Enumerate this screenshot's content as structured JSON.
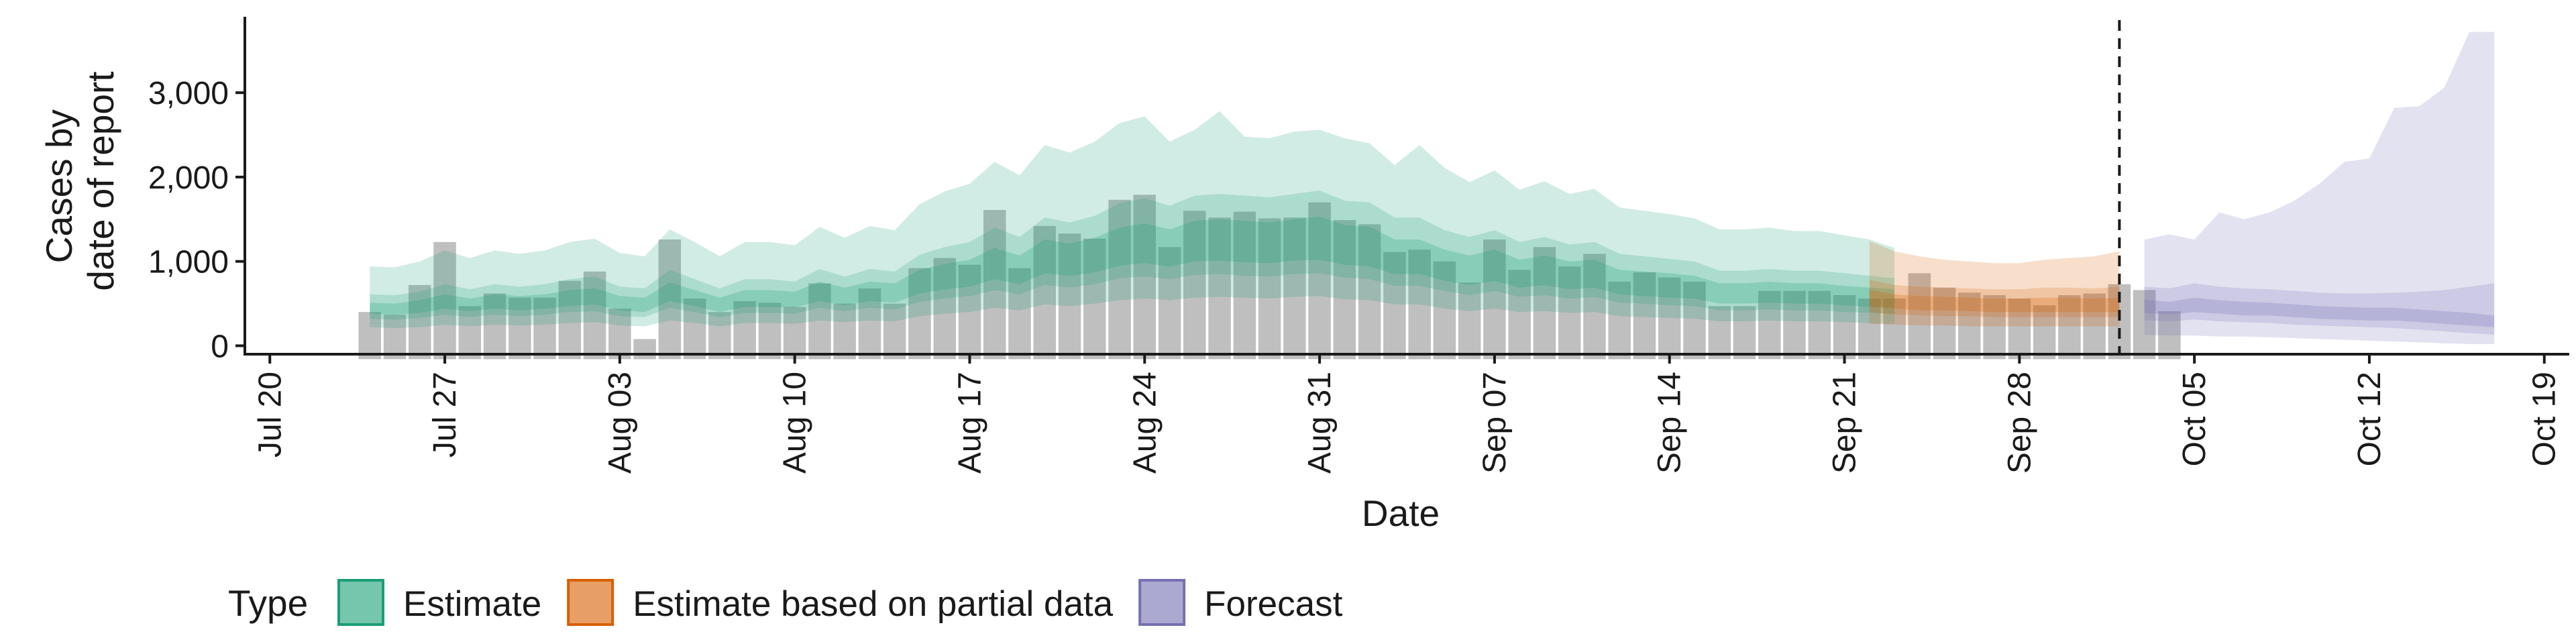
{
  "chart_data": {
    "type": "bar",
    "title": "",
    "xlabel": "Date",
    "ylabel_lines": [
      "Cases by",
      "date of report"
    ],
    "x_start_date": "2020-07-20",
    "xlim": [
      "2020-07-19",
      "2020-10-20"
    ],
    "ylim": [
      -100,
      3900
    ],
    "x_ticks": [
      "Jul 20",
      "Jul 27",
      "Aug 03",
      "Aug 10",
      "Aug 17",
      "Aug 24",
      "Aug 31",
      "Sep 07",
      "Sep 14",
      "Sep 21",
      "Sep 28",
      "Oct 05",
      "Oct 12",
      "Oct 19"
    ],
    "y_ticks": [
      {
        "value": 0,
        "label": "0"
      },
      {
        "value": 1000,
        "label": "1,000"
      },
      {
        "value": 2000,
        "label": "2,000"
      },
      {
        "value": 3000,
        "label": "3,000"
      }
    ],
    "vline_date": "2020-10-02",
    "observed_cases": {
      "start": "2020-07-24",
      "values": [
        400,
        370,
        720,
        1230,
        470,
        620,
        570,
        570,
        770,
        880,
        440,
        80,
        1260,
        560,
        400,
        530,
        510,
        460,
        740,
        500,
        680,
        500,
        920,
        1040,
        960,
        1610,
        920,
        1420,
        1330,
        1270,
        1730,
        1790,
        1170,
        1600,
        1520,
        1590,
        1510,
        1520,
        1700,
        1490,
        1440,
        1110,
        1140,
        1000,
        750,
        1260,
        900,
        1170,
        940,
        1090,
        760,
        870,
        810,
        760,
        470,
        470,
        650,
        650,
        650,
        600,
        560,
        560,
        860,
        690,
        630,
        600,
        560,
        480,
        600,
        620,
        730,
        660,
        410
      ]
    },
    "series": [
      {
        "name": "Estimate",
        "start": "2020-07-24",
        "color": "#1b9e77",
        "median": [
          440,
          430,
          460,
          520,
          480,
          520,
          500,
          520,
          560,
          580,
          500,
          480,
          640,
          560,
          480,
          560,
          560,
          540,
          640,
          580,
          640,
          620,
          760,
          820,
          860,
          980,
          900,
          1060,
          1020,
          1080,
          1180,
          1220,
          1160,
          1240,
          1260,
          1240,
          1220,
          1260,
          1280,
          1200,
          1180,
          1060,
          1060,
          960,
          900,
          960,
          860,
          900,
          840,
          860,
          760,
          740,
          720,
          700,
          620,
          620,
          640,
          620,
          620,
          600,
          580,
          560
        ],
        "inner_lower": [
          380,
          370,
          390,
          440,
          410,
          440,
          420,
          440,
          470,
          490,
          420,
          400,
          530,
          470,
          400,
          460,
          460,
          450,
          530,
          480,
          530,
          510,
          620,
          670,
          700,
          790,
          730,
          860,
          830,
          870,
          950,
          980,
          940,
          1000,
          1010,
          990,
          980,
          1010,
          1020,
          960,
          940,
          850,
          850,
          770,
          720,
          770,
          690,
          720,
          670,
          690,
          610,
          590,
          570,
          560,
          500,
          500,
          510,
          500,
          500,
          480,
          460,
          450
        ],
        "inner_upper": [
          510,
          500,
          540,
          610,
          560,
          610,
          590,
          610,
          660,
          680,
          590,
          570,
          750,
          660,
          570,
          660,
          660,
          640,
          760,
          690,
          760,
          740,
          900,
          970,
          1020,
          1160,
          1070,
          1260,
          1210,
          1280,
          1400,
          1450,
          1380,
          1480,
          1500,
          1480,
          1460,
          1500,
          1530,
          1430,
          1410,
          1260,
          1260,
          1140,
          1070,
          1140,
          1020,
          1070,
          1000,
          1020,
          900,
          880,
          860,
          830,
          740,
          740,
          760,
          740,
          740,
          710,
          690,
          670
        ],
        "mid_lower": [
          320,
          310,
          330,
          370,
          340,
          370,
          350,
          370,
          400,
          410,
          350,
          340,
          450,
          400,
          340,
          390,
          390,
          380,
          450,
          410,
          450,
          430,
          520,
          560,
          590,
          660,
          610,
          720,
          690,
          730,
          800,
          820,
          790,
          840,
          850,
          830,
          820,
          850,
          860,
          810,
          790,
          710,
          710,
          650,
          600,
          650,
          580,
          600,
          560,
          580,
          510,
          500,
          480,
          470,
          420,
          420,
          430,
          420,
          420,
          400,
          390,
          380
        ],
        "mid_upper": [
          610,
          600,
          640,
          730,
          670,
          730,
          700,
          730,
          790,
          820,
          700,
          680,
          900,
          790,
          680,
          790,
          790,
          760,
          910,
          820,
          910,
          880,
          1080,
          1170,
          1230,
          1400,
          1290,
          1520,
          1460,
          1540,
          1690,
          1750,
          1660,
          1780,
          1800,
          1780,
          1760,
          1800,
          1840,
          1720,
          1700,
          1520,
          1520,
          1370,
          1290,
          1370,
          1230,
          1290,
          1200,
          1230,
          1090,
          1060,
          1030,
          1000,
          890,
          890,
          910,
          890,
          890,
          860,
          830,
          800
        ],
        "outer_lower": [
          220,
          210,
          220,
          250,
          230,
          250,
          240,
          250,
          270,
          280,
          240,
          230,
          300,
          270,
          230,
          270,
          270,
          260,
          300,
          280,
          300,
          290,
          350,
          380,
          400,
          450,
          420,
          490,
          470,
          500,
          540,
          560,
          540,
          570,
          580,
          570,
          560,
          580,
          590,
          550,
          540,
          490,
          490,
          440,
          410,
          440,
          400,
          410,
          390,
          400,
          350,
          340,
          330,
          320,
          290,
          290,
          300,
          290,
          290,
          280,
          270,
          260
        ],
        "outer_upper": [
          940,
          930,
          1000,
          1130,
          1040,
          1130,
          1090,
          1130,
          1230,
          1270,
          1100,
          1060,
          1380,
          1230,
          1060,
          1230,
          1230,
          1190,
          1410,
          1280,
          1420,
          1370,
          1680,
          1830,
          1920,
          2180,
          2020,
          2380,
          2290,
          2420,
          2640,
          2720,
          2420,
          2560,
          2780,
          2480,
          2460,
          2540,
          2560,
          2460,
          2400,
          2140,
          2380,
          2110,
          1940,
          2080,
          1850,
          1950,
          1800,
          1860,
          1640,
          1600,
          1560,
          1510,
          1380,
          1380,
          1400,
          1360,
          1360,
          1310,
          1260,
          1160
        ]
      },
      {
        "name": "Estimate based on partial data",
        "start": "2020-09-22",
        "color": "#d95f02",
        "median": [
          560,
          520,
          500,
          490,
          480,
          470,
          470,
          480,
          480,
          470,
          480
        ],
        "inner_lower": [
          470,
          440,
          420,
          420,
          410,
          400,
          400,
          400,
          400,
          400,
          400
        ],
        "inner_upper": [
          660,
          610,
          590,
          580,
          570,
          560,
          560,
          570,
          570,
          560,
          570
        ],
        "mid_lower": [
          400,
          370,
          360,
          350,
          350,
          340,
          340,
          340,
          340,
          340,
          340
        ],
        "mid_upper": [
          780,
          720,
          700,
          690,
          680,
          670,
          670,
          690,
          690,
          680,
          700
        ],
        "outer_lower": [
          260,
          250,
          240,
          240,
          230,
          230,
          230,
          230,
          230,
          230,
          230
        ],
        "outer_upper": [
          1240,
          1120,
          1060,
          1020,
          1000,
          980,
          980,
          1020,
          1040,
          1060,
          1120
        ]
      },
      {
        "name": "Forecast",
        "start": "2020-10-03",
        "color": "#7570b3",
        "median": [
          460,
          440,
          480,
          450,
          430,
          430,
          410,
          390,
          380,
          370,
          370,
          350,
          330,
          310,
          280
        ],
        "inner_lower": [
          390,
          370,
          400,
          380,
          360,
          360,
          340,
          320,
          310,
          300,
          300,
          280,
          260,
          240,
          220
        ],
        "inner_upper": [
          550,
          520,
          570,
          540,
          520,
          510,
          490,
          470,
          460,
          450,
          450,
          430,
          410,
          390,
          360
        ],
        "mid_lower": [
          300,
          290,
          310,
          290,
          280,
          270,
          250,
          240,
          230,
          220,
          210,
          190,
          170,
          150,
          130
        ],
        "mid_upper": [
          700,
          680,
          740,
          700,
          680,
          670,
          650,
          630,
          620,
          620,
          630,
          640,
          660,
          700,
          740
        ],
        "outer_lower": [
          130,
          120,
          120,
          110,
          110,
          100,
          90,
          80,
          70,
          60,
          50,
          40,
          30,
          20,
          20
        ],
        "outer_upper": [
          1260,
          1320,
          1260,
          1580,
          1500,
          1580,
          1720,
          1920,
          2180,
          2220,
          2820,
          2840,
          3060,
          3720,
          3720
        ]
      }
    ],
    "legend": {
      "title": "Type",
      "position": "bottom",
      "items": [
        "Estimate",
        "Estimate based on partial data",
        "Forecast"
      ]
    }
  }
}
